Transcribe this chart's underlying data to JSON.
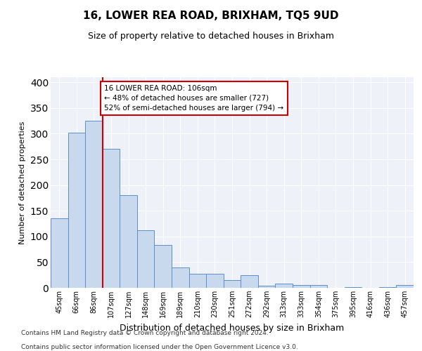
{
  "title": "16, LOWER REA ROAD, BRIXHAM, TQ5 9UD",
  "subtitle": "Size of property relative to detached houses in Brixham",
  "xlabel": "Distribution of detached houses by size in Brixham",
  "ylabel": "Number of detached properties",
  "categories": [
    "45sqm",
    "66sqm",
    "86sqm",
    "107sqm",
    "127sqm",
    "148sqm",
    "169sqm",
    "189sqm",
    "210sqm",
    "230sqm",
    "251sqm",
    "272sqm",
    "292sqm",
    "313sqm",
    "333sqm",
    "354sqm",
    "375sqm",
    "395sqm",
    "416sqm",
    "436sqm",
    "457sqm"
  ],
  "values": [
    135,
    302,
    325,
    271,
    181,
    112,
    84,
    39,
    27,
    27,
    15,
    24,
    4,
    8,
    5,
    5,
    0,
    2,
    0,
    2,
    5
  ],
  "bar_color": "#c9d9ed",
  "bar_edge_color": "#5b8fc9",
  "highlight_line_color": "#cc0000",
  "annotation_line1": "16 LOWER REA ROAD: 106sqm",
  "annotation_line2": "← 48% of detached houses are smaller (727)",
  "annotation_line3": "52% of semi-detached houses are larger (794) →",
  "annotation_box_color": "#cc0000",
  "ylim": [
    0,
    410
  ],
  "yticks": [
    0,
    50,
    100,
    150,
    200,
    250,
    300,
    350,
    400
  ],
  "footnote1": "Contains HM Land Registry data © Crown copyright and database right 2024.",
  "footnote2": "Contains public sector information licensed under the Open Government Licence v3.0.",
  "background_color": "#eef2f8"
}
